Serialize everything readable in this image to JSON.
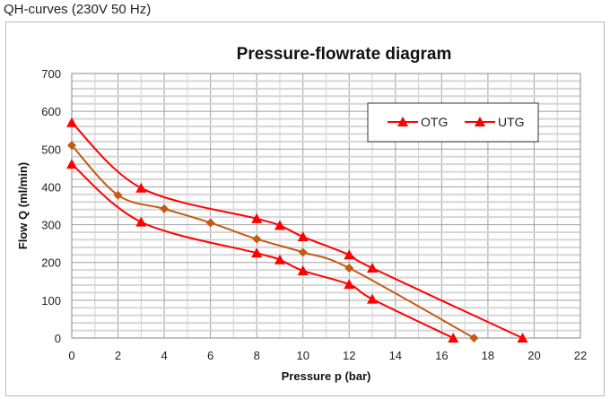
{
  "header": "QH-curves (230V 50 Hz)",
  "chart_data": {
    "type": "line",
    "title": "Pressure-flowrate diagram",
    "xlabel": "Pressure p (bar)",
    "ylabel": "Flow Q (ml/min)",
    "xlim": [
      0,
      22
    ],
    "ylim": [
      0,
      700
    ],
    "xticks": [
      0,
      2,
      4,
      6,
      8,
      10,
      12,
      14,
      16,
      18,
      20,
      22
    ],
    "yticks": [
      0,
      100,
      200,
      300,
      400,
      500,
      600,
      700
    ],
    "grid": true,
    "legend_placement": "top-right",
    "series": [
      {
        "name": "UTG",
        "color": "#ff0000",
        "marker": "triangle",
        "x": [
          0,
          3,
          8,
          9,
          10,
          12,
          13,
          19.5
        ],
        "y": [
          570,
          397,
          316,
          298,
          268,
          220,
          185,
          0
        ]
      },
      {
        "color": "#c55a11",
        "marker": "diamond",
        "x": [
          0,
          2,
          4,
          6,
          8,
          10,
          12,
          17.4
        ],
        "y": [
          510,
          378,
          342,
          305,
          262,
          227,
          185,
          0
        ]
      },
      {
        "name": "OTG",
        "color": "#ff0000",
        "marker": "triangle",
        "x": [
          0,
          3,
          8,
          9,
          10,
          12,
          13,
          16.5
        ],
        "y": [
          460,
          307,
          225,
          207,
          178,
          142,
          103,
          0
        ]
      }
    ],
    "legend": [
      "OTG",
      "UTG"
    ]
  }
}
